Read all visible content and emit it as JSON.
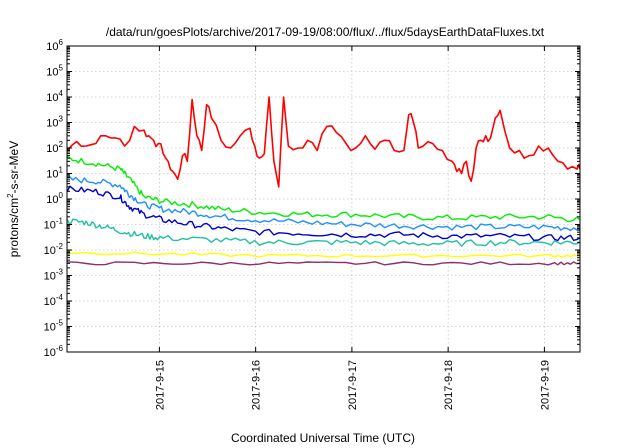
{
  "chart_data": {
    "type": "line",
    "title": "/data/run/goesPlots/archive/2017-09-19/08:00/flux/../flux/5daysEarthDataFluxes.txt",
    "xlabel": "Coordinated Universal Time (UTC)",
    "ylabel": "protons/cm2-s-sr-MeV",
    "yscale": "log",
    "ylim": [
      1e-06,
      1000000.0
    ],
    "xlim": [
      0,
      5.33
    ],
    "x_ticks": [
      {
        "value": 0.96,
        "label": "2017-9-15"
      },
      {
        "value": 1.96,
        "label": "2017-9-16"
      },
      {
        "value": 2.96,
        "label": "2017-9-17"
      },
      {
        "value": 3.96,
        "label": "2017-9-18"
      },
      {
        "value": 4.96,
        "label": "2017-9-19"
      }
    ],
    "y_ticks": [
      {
        "exp": 6,
        "label": "10",
        "sup": "6"
      },
      {
        "exp": 5,
        "label": "10",
        "sup": "5"
      },
      {
        "exp": 4,
        "label": "10",
        "sup": "4"
      },
      {
        "exp": 3,
        "label": "10",
        "sup": "3"
      },
      {
        "exp": 2,
        "label": "10",
        "sup": "2"
      },
      {
        "exp": 1,
        "label": "10",
        "sup": "1"
      },
      {
        "exp": 0,
        "label": "10",
        "sup": "0"
      },
      {
        "exp": -1,
        "label": "10",
        "sup": "-1"
      },
      {
        "exp": -2,
        "label": "10",
        "sup": "-2"
      },
      {
        "exp": -3,
        "label": "10",
        "sup": "-3"
      },
      {
        "exp": -4,
        "label": "10",
        "sup": "-4"
      },
      {
        "exp": -5,
        "label": "10",
        "sup": "-5"
      },
      {
        "exp": -6,
        "label": "10",
        "sup": "-6"
      }
    ],
    "grid": true,
    "series": [
      {
        "color": "#ff0000",
        "x": [
          0.0,
          0.1,
          0.2,
          0.3,
          0.4,
          0.5,
          0.6,
          0.7,
          0.8,
          0.85,
          0.9,
          0.95,
          1.0,
          1.05,
          1.1,
          1.15,
          1.2,
          1.25,
          1.3,
          1.35,
          1.4,
          1.45,
          1.5,
          1.6,
          1.7,
          1.8,
          1.9,
          1.95,
          2.0,
          2.05,
          2.1,
          2.15,
          2.2,
          2.25,
          2.3,
          2.4,
          2.5,
          2.6,
          2.7,
          2.8,
          2.9,
          3.0,
          3.1,
          3.2,
          3.3,
          3.4,
          3.5,
          3.55,
          3.6,
          3.65,
          3.7,
          3.8,
          3.9,
          4.0,
          4.05,
          4.1,
          4.15,
          4.2,
          4.25,
          4.3,
          4.35,
          4.4,
          4.45,
          4.5,
          4.6,
          4.7,
          4.8,
          4.9,
          5.0,
          5.1,
          5.2,
          5.3,
          5.33
        ],
        "y": [
          80,
          180,
          120,
          150,
          300,
          250,
          120,
          700,
          500,
          300,
          200,
          150,
          60,
          30,
          12,
          6,
          50,
          30,
          8000,
          300,
          80,
          5000,
          1500,
          200,
          100,
          300,
          600,
          120,
          40,
          60,
          10000,
          30,
          3,
          10000,
          120,
          100,
          200,
          80,
          700,
          400,
          150,
          100,
          300,
          90,
          200,
          80,
          80,
          2000,
          1000,
          100,
          120,
          150,
          80,
          30,
          12,
          10,
          30,
          5,
          100,
          200,
          300,
          250,
          1500,
          3000,
          100,
          80,
          50,
          120,
          100,
          30,
          15,
          15,
          15
        ]
      },
      {
        "color": "#00ee00",
        "x": [
          0.0,
          0.3,
          0.55,
          0.65,
          0.8,
          1.0,
          1.3,
          1.6,
          2.0,
          2.5,
          3.0,
          3.5,
          4.0,
          4.5,
          5.0,
          5.33
        ],
        "y": [
          40,
          25,
          15,
          6,
          1.2,
          0.8,
          0.6,
          0.4,
          0.3,
          0.25,
          0.25,
          0.2,
          0.18,
          0.2,
          0.2,
          0.15
        ]
      },
      {
        "color": "#1e90ff",
        "x": [
          0.0,
          0.3,
          0.55,
          0.65,
          0.8,
          1.0,
          1.3,
          1.6,
          2.0,
          2.5,
          3.0,
          3.5,
          4.0,
          4.5,
          5.0,
          5.33
        ],
        "y": [
          6,
          5,
          3.5,
          1.5,
          0.6,
          0.4,
          0.3,
          0.2,
          0.15,
          0.12,
          0.1,
          0.09,
          0.08,
          0.08,
          0.08,
          0.07
        ]
      },
      {
        "color": "#0000cc",
        "x": [
          0.0,
          0.3,
          0.55,
          0.65,
          0.8,
          1.0,
          1.3,
          1.6,
          2.0,
          2.5,
          3.0,
          3.5,
          4.0,
          4.5,
          5.0,
          5.33
        ],
        "y": [
          2.5,
          2.0,
          1.2,
          0.5,
          0.25,
          0.15,
          0.1,
          0.07,
          0.05,
          0.045,
          0.04,
          0.04,
          0.035,
          0.035,
          0.03,
          0.03
        ]
      },
      {
        "color": "#20c0a0",
        "x": [
          0.0,
          0.2,
          0.4,
          0.6,
          0.8,
          1.0,
          1.5,
          2.0,
          2.5,
          3.0,
          3.5,
          4.0,
          4.5,
          5.0,
          5.33
        ],
        "y": [
          0.14,
          0.12,
          0.08,
          0.05,
          0.035,
          0.03,
          0.025,
          0.02,
          0.02,
          0.02,
          0.018,
          0.018,
          0.02,
          0.02,
          0.02
        ]
      },
      {
        "color": "#ffff00",
        "x": [
          0.0,
          1.0,
          2.0,
          3.0,
          4.0,
          5.0,
          5.33
        ],
        "y": [
          0.008,
          0.007,
          0.006,
          0.006,
          0.006,
          0.006,
          0.006
        ]
      },
      {
        "color": "#8b2f6e",
        "x": [
          0.0,
          1.0,
          2.0,
          3.0,
          4.0,
          5.0,
          5.33
        ],
        "y": [
          0.003,
          0.003,
          0.003,
          0.003,
          0.003,
          0.003,
          0.003
        ]
      }
    ]
  },
  "ylabel_parts": {
    "pre": "protons/cm",
    "sup": "2",
    "post": "-s-sr-MeV"
  }
}
